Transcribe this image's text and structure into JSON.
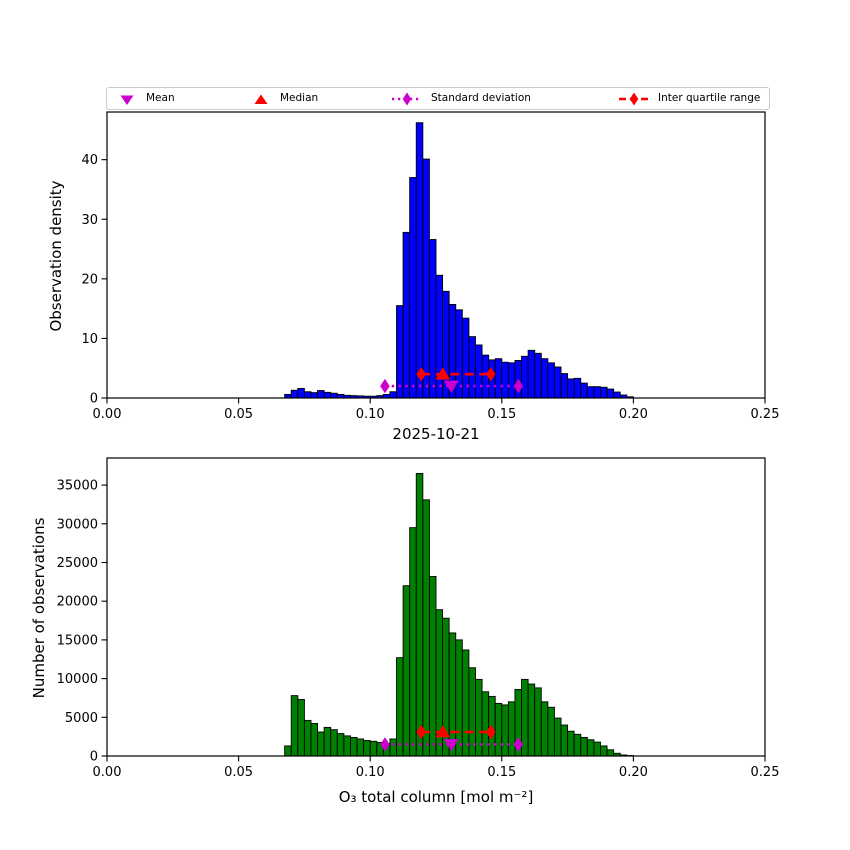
{
  "legend": {
    "border_color": "#cccccc",
    "items": [
      {
        "label": "Mean",
        "marker": "triangle-down",
        "color": "#cc00cc"
      },
      {
        "label": "Median",
        "marker": "triangle-up",
        "color": "#ff0000"
      },
      {
        "label": "Standard deviation",
        "marker": "diamond-dotted-line",
        "color": "#cc00cc"
      },
      {
        "label": "Inter quartile range",
        "marker": "diamond-dashed-line",
        "color": "#ff0000"
      }
    ]
  },
  "chart_data": [
    {
      "type": "bar",
      "subtype": "histogram",
      "title": "",
      "xlabel": "",
      "ylabel": "Observation density",
      "bar_color": "#0000ff",
      "bar_edge_color": "#000000",
      "grid": false,
      "legend_position": "above",
      "xlim": [
        0,
        0.25
      ],
      "ylim": [
        0,
        48
      ],
      "xticks": [
        0,
        0.05,
        0.1,
        0.15,
        0.2,
        0.25
      ],
      "xtick_labels": [
        "0.00",
        "0.05",
        "0.10",
        "0.15",
        "0.20",
        "0.25"
      ],
      "yticks": [
        0,
        10,
        20,
        30,
        40
      ],
      "ytick_labels": [
        "0",
        "10",
        "20",
        "30",
        "40"
      ],
      "bin_start": 0.0675,
      "bin_width": 0.0025,
      "values": [
        0.6,
        1.3,
        1.6,
        1.05,
        0.9,
        1.25,
        0.95,
        0.8,
        0.6,
        0.45,
        0.4,
        0.35,
        0.3,
        0.3,
        0.4,
        0.6,
        1.05,
        15.5,
        27.8,
        37.0,
        46.2,
        40.1,
        26.6,
        20.6,
        17.9,
        15.7,
        14.8,
        13.4,
        10.3,
        8.9,
        7.2,
        6.4,
        6.6,
        6.0,
        5.9,
        6.3,
        7.0,
        8.0,
        7.5,
        6.6,
        5.9,
        5.2,
        4.1,
        3.2,
        3.3,
        2.5,
        1.9,
        1.9,
        1.8,
        1.5,
        1.0,
        0.5,
        0.2
      ],
      "markers": {
        "mean": {
          "x": 0.1308,
          "y": 2.0
        },
        "median": {
          "x": 0.1276,
          "y": 4.0
        },
        "std_range": {
          "x1": 0.1056,
          "x2": 0.1563,
          "y": 2.0
        },
        "iqr_range": {
          "x1": 0.1194,
          "x2": 0.1458,
          "y": 4.0
        }
      }
    },
    {
      "type": "bar",
      "subtype": "histogram",
      "title": "2025-10-21",
      "xlabel": "O₃ total column [mol m⁻²]",
      "ylabel": "Number of observations",
      "bar_color": "#008000",
      "bar_edge_color": "#000000",
      "grid": false,
      "xlim": [
        0,
        0.25
      ],
      "ylim": [
        0,
        38500
      ],
      "xticks": [
        0,
        0.05,
        0.1,
        0.15,
        0.2,
        0.25
      ],
      "xtick_labels": [
        "0.00",
        "0.05",
        "0.10",
        "0.15",
        "0.20",
        "0.25"
      ],
      "yticks": [
        0,
        5000,
        10000,
        15000,
        20000,
        25000,
        30000,
        35000
      ],
      "ytick_labels": [
        "0",
        "5000",
        "10000",
        "15000",
        "20000",
        "25000",
        "30000",
        "35000"
      ],
      "bin_start": 0.0675,
      "bin_width": 0.0025,
      "values": [
        1300,
        7800,
        7300,
        4600,
        4200,
        3100,
        3700,
        3400,
        2900,
        2600,
        2400,
        2200,
        2000,
        1900,
        1750,
        1600,
        2200,
        12700,
        22000,
        29500,
        36500,
        33100,
        23200,
        18900,
        17800,
        15900,
        15000,
        13700,
        11400,
        9900,
        8300,
        7700,
        6800,
        6600,
        7000,
        8600,
        9900,
        9300,
        8800,
        7000,
        6300,
        4900,
        4000,
        3200,
        2800,
        2400,
        2100,
        1800,
        1300,
        800,
        350,
        130,
        60
      ],
      "markers": {
        "mean": {
          "x": 0.1308,
          "y": 1500
        },
        "median": {
          "x": 0.1276,
          "y": 3100
        },
        "std_range": {
          "x1": 0.1056,
          "x2": 0.1563,
          "y": 1500
        },
        "iqr_range": {
          "x1": 0.1194,
          "x2": 0.1458,
          "y": 3100
        }
      }
    }
  ]
}
